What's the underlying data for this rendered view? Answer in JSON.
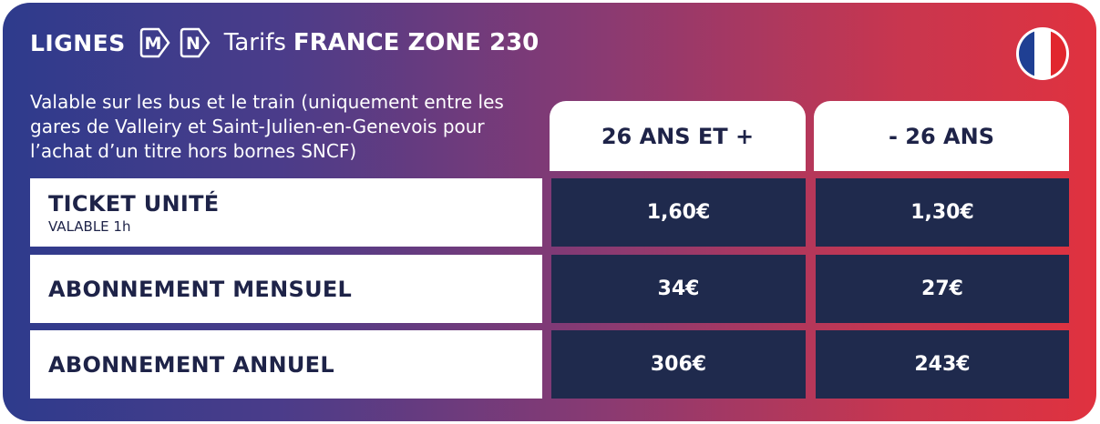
{
  "header": {
    "lignes": "LIGNES",
    "line_badges": [
      "M",
      "N"
    ],
    "tarifs": "Tarifs",
    "zone": "FRANCE ZONE 230",
    "flag": "france-flag-icon"
  },
  "description": "Valable sur les bus et le train (uniquement entre les gares de Valleiry et Saint-Julien-en-Genevois pour l’achat d’un titre hors bornes SNCF)",
  "columns": [
    "26 ANS ET +",
    "- 26 ANS"
  ],
  "rows": [
    {
      "label": "TICKET UNITÉ",
      "sub": "VALABLE 1h",
      "values": [
        "1,60€",
        "1,30€"
      ]
    },
    {
      "label": "ABONNEMENT MENSUEL",
      "sub": "",
      "values": [
        "34€",
        "27€"
      ]
    },
    {
      "label": "ABONNEMENT ANNUEL",
      "sub": "",
      "values": [
        "306€",
        "243€"
      ]
    }
  ],
  "colors": {
    "gradient_left": "#2e3b8c",
    "gradient_right": "#e0323f",
    "navy_cell": "#1f2a4d",
    "label_text": "#1e2348",
    "flag_blue": "#1f3f93",
    "flag_white": "#ffffff",
    "flag_red": "#e1262d"
  }
}
